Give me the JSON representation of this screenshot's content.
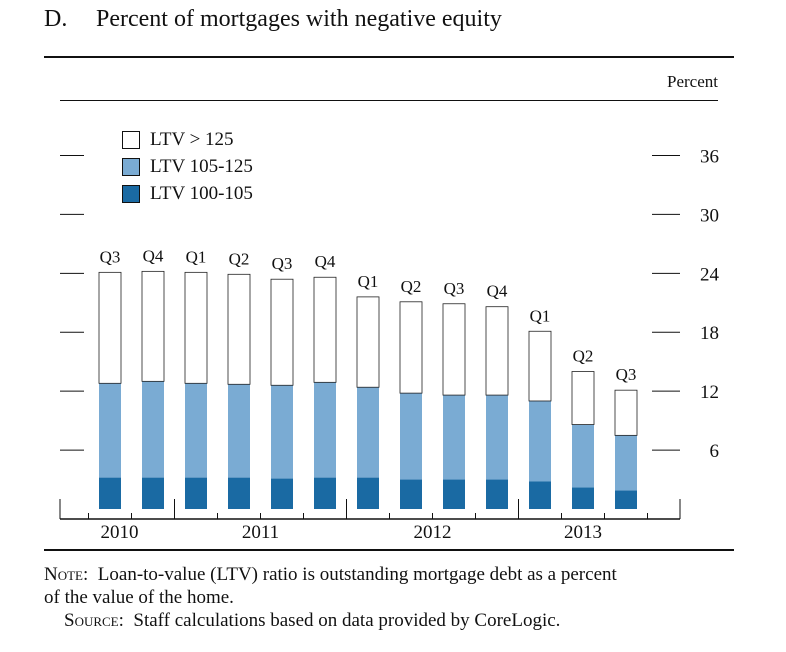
{
  "figure": {
    "letter": "D.",
    "title": "Percent of mortgages with negative equity",
    "unit": "Percent"
  },
  "chart_data": {
    "type": "bar",
    "stacked": true,
    "categories": [
      "Q3",
      "Q4",
      "Q1",
      "Q2",
      "Q3",
      "Q4",
      "Q1",
      "Q2",
      "Q3",
      "Q4",
      "Q1",
      "Q2",
      "Q3"
    ],
    "years": [
      {
        "label": "2010",
        "start": 0,
        "end": 1
      },
      {
        "label": "2011",
        "start": 2,
        "end": 5
      },
      {
        "label": "2012",
        "start": 6,
        "end": 9
      },
      {
        "label": "2013",
        "start": 10,
        "end": 12
      }
    ],
    "series": [
      {
        "name": "LTV 100-105",
        "color": "#1a6aa3",
        "values": [
          3.2,
          3.2,
          3.2,
          3.2,
          3.1,
          3.2,
          3.2,
          3.0,
          3.0,
          3.0,
          2.8,
          2.2,
          1.9
        ]
      },
      {
        "name": "LTV 105-125",
        "color": "#7aabd3",
        "values": [
          9.6,
          9.8,
          9.6,
          9.5,
          9.5,
          9.7,
          9.2,
          8.8,
          8.6,
          8.6,
          8.2,
          6.4,
          5.6
        ]
      },
      {
        "name": "LTV > 125",
        "color": "#ffffff",
        "values": [
          11.3,
          11.2,
          11.3,
          11.2,
          10.8,
          10.7,
          9.2,
          9.3,
          9.3,
          9.0,
          7.1,
          5.4,
          4.6
        ]
      }
    ],
    "legend_order": [
      "LTV > 125",
      "LTV 105-125",
      "LTV 100-105"
    ],
    "yticks": [
      6,
      12,
      18,
      24,
      30,
      36
    ],
    "ylim": [
      0,
      40
    ],
    "ylabel": "Percent",
    "legend_position": "top-left",
    "grid": false
  },
  "notes": {
    "note_label": "Note:",
    "note_text": "Loan-to-value (LTV) ratio is outstanding mortgage debt as a percent",
    "note_text_cont": "of the value of the home.",
    "source_label": "Source:",
    "source_text": "Staff calculations based on data provided by CoreLogic."
  }
}
